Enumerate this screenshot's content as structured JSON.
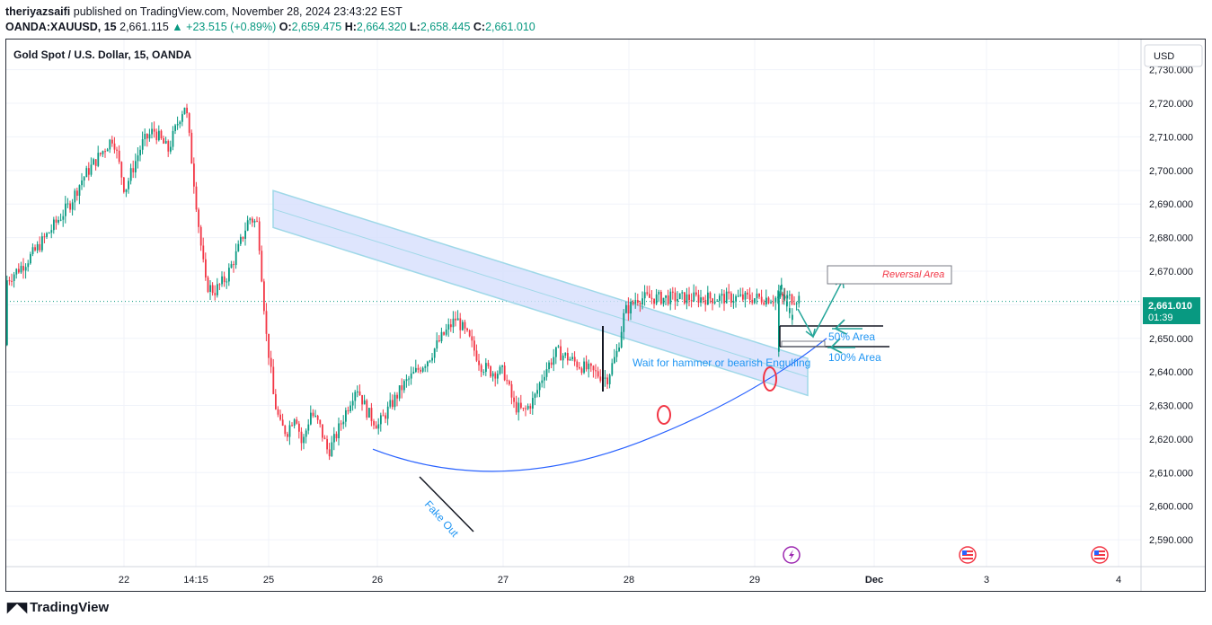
{
  "header": {
    "user": "theriyazsaifi",
    "published_text": "published on TradingView.com, November 28, 2024 23:43:22 EST",
    "symbol": "OANDA:XAUUSD, 15",
    "last": "2,661.115",
    "change_arrow": "▲",
    "change": "+23.515 (+0.89%)",
    "o_label": "O:",
    "o": "2,659.475",
    "h_label": "H:",
    "h": "2,664.320",
    "l_label": "L:",
    "l": "2,658.445",
    "c_label": "C:",
    "c": "2,661.010"
  },
  "legend": {
    "title": "Gold Spot / U.S. Dollar, 15, OANDA"
  },
  "currency_button": "USD",
  "price_badge": {
    "price": "2,661.010",
    "countdown": "01:39"
  },
  "annotations": {
    "reversal_area": "Reversal Area",
    "fifty_area": "50% Area",
    "hundred_area": "100% Area",
    "wait_text": "Wait for hammer or bearish Engulfing",
    "fake_out": "Fake Out"
  },
  "footer": {
    "brand": "TradingView",
    "logo_icon": "tradingview-logo-icon"
  },
  "colors": {
    "up": "#089981",
    "down": "#f23645",
    "channel": "#b3c8f7",
    "arc": "#2962ff",
    "annotation_text": "#2196f3",
    "reversal_text": "#f23645",
    "accent": "#26a69a"
  },
  "chart_data": {
    "type": "candlestick",
    "title": "Gold Spot / U.S. Dollar, 15, OANDA",
    "y_axis_ticks": [
      "2,730.000",
      "2,720.000",
      "2,710.000",
      "2,700.000",
      "2,690.000",
      "2,680.000",
      "2,670.000",
      "2,660.000",
      "2,650.000",
      "2,640.000",
      "2,630.000",
      "2,620.000",
      "2,610.000",
      "2,600.000",
      "2,590.000"
    ],
    "y_tick_values": [
      2730,
      2720,
      2710,
      2700,
      2690,
      2680,
      2670,
      2660,
      2650,
      2640,
      2630,
      2620,
      2610,
      2600,
      2590
    ],
    "ylim": [
      2582,
      2739
    ],
    "x_axis_ticks": [
      "22",
      "14:15",
      "25",
      "26",
      "27",
      "28",
      "29",
      "Dec",
      "3",
      "4"
    ],
    "x_tick_bold": [
      false,
      false,
      false,
      false,
      false,
      false,
      false,
      true,
      false,
      false
    ],
    "last_price": 2661.01,
    "grid": true,
    "price_path_close": [
      [
        0,
        2648
      ],
      [
        0.06,
        2658
      ],
      [
        0.12,
        2664
      ],
      [
        0.2,
        2668
      ],
      [
        0.3,
        2672
      ],
      [
        0.38,
        2676
      ],
      [
        0.5,
        2683
      ],
      [
        0.62,
        2690
      ],
      [
        0.7,
        2697
      ],
      [
        0.8,
        2703
      ],
      [
        0.92,
        2710
      ],
      [
        1.0,
        2694
      ],
      [
        1.05,
        2700
      ],
      [
        1.12,
        2708
      ],
      [
        1.2,
        2712
      ],
      [
        1.3,
        2706
      ],
      [
        1.38,
        2716
      ],
      [
        1.42,
        2720
      ],
      [
        1.47,
        2700
      ],
      [
        1.52,
        2680
      ],
      [
        1.56,
        2666
      ],
      [
        1.62,
        2664
      ],
      [
        1.7,
        2668
      ],
      [
        1.78,
        2676
      ],
      [
        1.86,
        2686
      ],
      [
        1.92,
        2684
      ],
      [
        1.98,
        2650
      ],
      [
        2.04,
        2632
      ],
      [
        2.1,
        2624
      ],
      [
        2.16,
        2622
      ],
      [
        2.24,
        2628
      ],
      [
        2.3,
        2618
      ],
      [
        2.38,
        2628
      ],
      [
        2.46,
        2624
      ],
      [
        2.54,
        2616
      ],
      [
        2.6,
        2620
      ],
      [
        2.7,
        2628
      ],
      [
        2.8,
        2636
      ],
      [
        2.9,
        2628
      ],
      [
        3.0,
        2624
      ],
      [
        3.1,
        2630
      ],
      [
        3.2,
        2636
      ],
      [
        3.3,
        2640
      ],
      [
        3.4,
        2644
      ],
      [
        3.5,
        2650
      ],
      [
        3.62,
        2656
      ],
      [
        3.72,
        2650
      ],
      [
        3.82,
        2642
      ],
      [
        3.9,
        2640
      ],
      [
        4.0,
        2640
      ],
      [
        4.08,
        2630
      ],
      [
        4.16,
        2628
      ],
      [
        4.24,
        2632
      ],
      [
        4.32,
        2640
      ],
      [
        4.42,
        2646
      ],
      [
        4.52,
        2644
      ],
      [
        4.6,
        2642
      ],
      [
        4.7,
        2640
      ],
      [
        4.82,
        2638
      ],
      [
        4.9,
        2646
      ],
      [
        4.96,
        2658
      ],
      [
        5.02,
        2660
      ],
      [
        5.05,
        2662
      ]
    ]
  }
}
